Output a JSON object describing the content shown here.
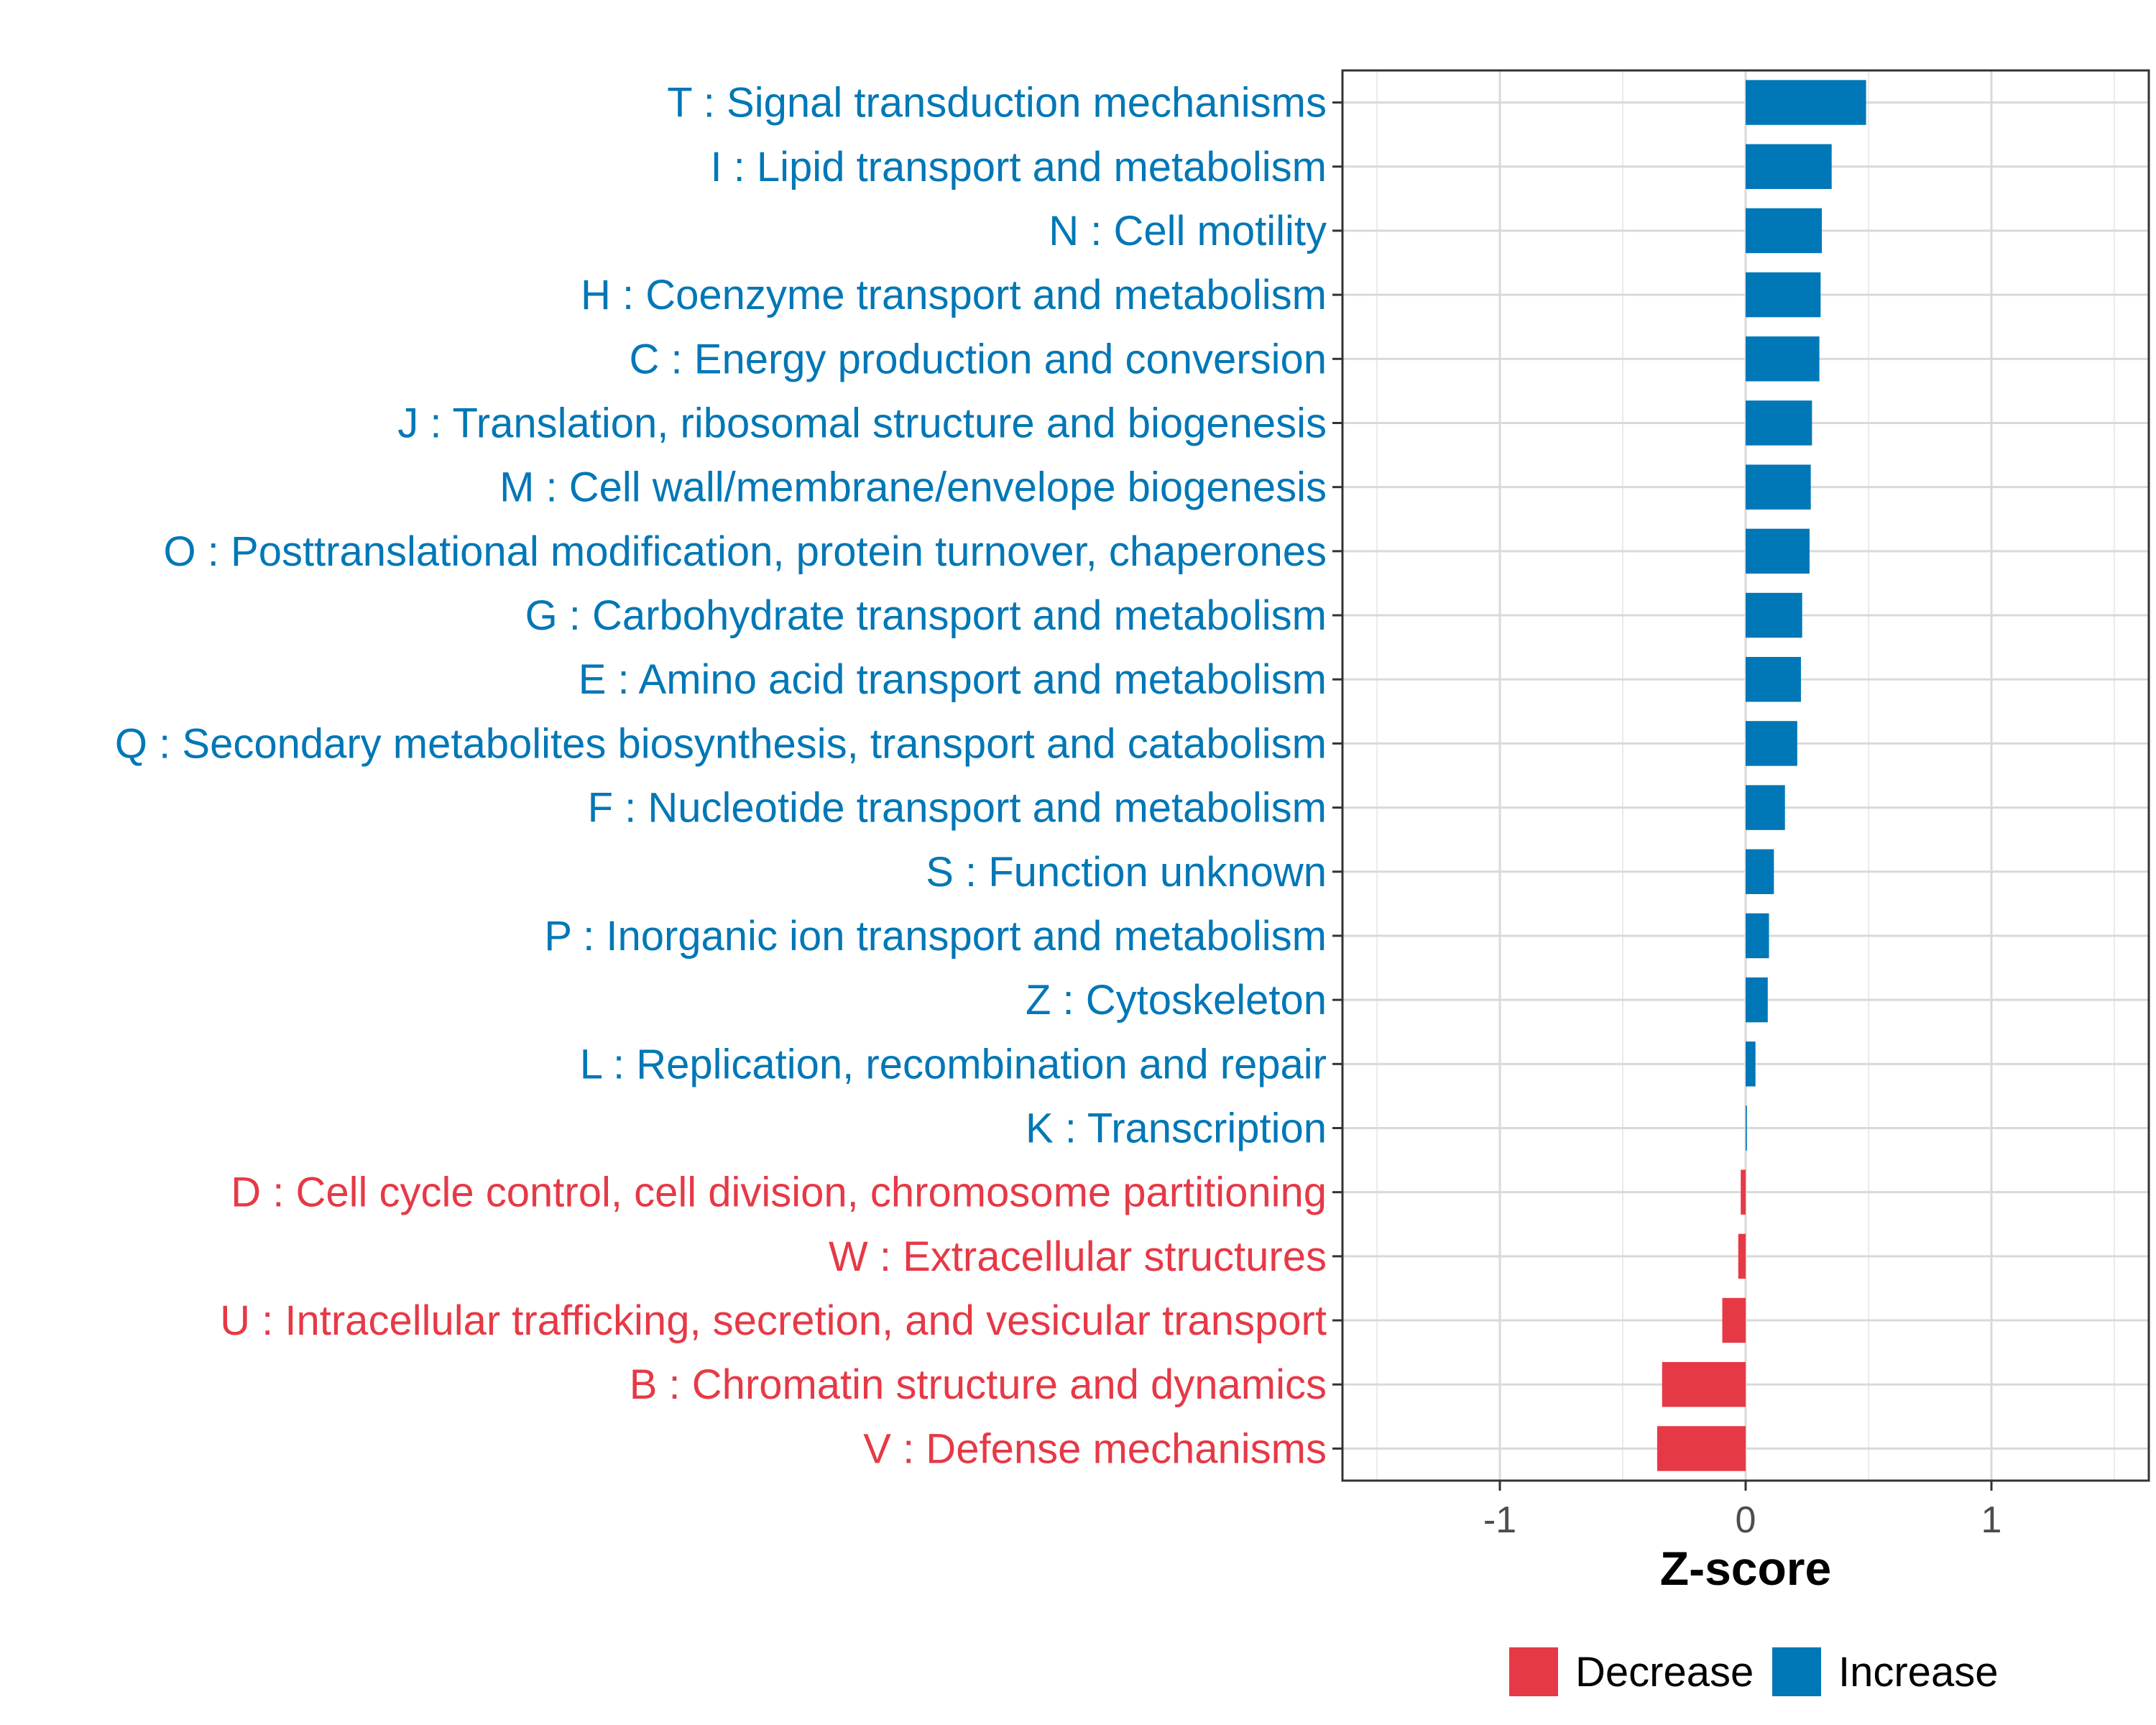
{
  "chart_data": {
    "type": "bar",
    "orientation": "horizontal",
    "xlabel": "Z-score",
    "ylabel": "",
    "xlim": [
      -1.65,
      1.65
    ],
    "x_ticks": [
      {
        "value": -1,
        "label": "-1"
      },
      {
        "value": 0,
        "label": "0"
      },
      {
        "value": 1,
        "label": "1"
      }
    ],
    "grid": true,
    "legend": {
      "position": "bottom-right",
      "items": [
        {
          "key": "Decrease",
          "label": "Decrease",
          "color": "#E63946"
        },
        {
          "key": "Increase",
          "label": "Increase",
          "color": "#0077B6"
        }
      ]
    },
    "categories": [
      "T : Signal transduction mechanisms",
      "I : Lipid transport and metabolism",
      "N : Cell motility",
      "H : Coenzyme transport and metabolism",
      "C : Energy production and conversion",
      "J : Translation, ribosomal structure and biogenesis",
      "M : Cell wall/membrane/envelope biogenesis",
      "O : Posttranslational modification, protein turnover, chaperones",
      "G : Carbohydrate transport and metabolism",
      "E : Amino acid transport and metabolism",
      "Q : Secondary metabolites biosynthesis, transport and catabolism",
      "F : Nucleotide transport and metabolism",
      "S : Function unknown",
      "P : Inorganic ion transport and metabolism",
      "Z : Cytoskeleton",
      "L : Replication, recombination and repair",
      "K : Transcription",
      "D : Cell cycle control, cell division, chromosome partitioning",
      "W : Extracellular structures",
      "U : Intracellular trafficking, secretion, and vesicular transport",
      "B : Chromatin structure and dynamics",
      "V : Defense mechanisms"
    ],
    "values": [
      0.49,
      0.35,
      0.31,
      0.305,
      0.3,
      0.27,
      0.265,
      0.26,
      0.23,
      0.225,
      0.21,
      0.16,
      0.115,
      0.095,
      0.09,
      0.04,
      0.005,
      -0.02,
      -0.03,
      -0.095,
      -0.34,
      -0.36
    ],
    "groups": [
      "Increase",
      "Increase",
      "Increase",
      "Increase",
      "Increase",
      "Increase",
      "Increase",
      "Increase",
      "Increase",
      "Increase",
      "Increase",
      "Increase",
      "Increase",
      "Increase",
      "Increase",
      "Increase",
      "Increase",
      "Decrease",
      "Decrease",
      "Decrease",
      "Decrease",
      "Decrease"
    ]
  }
}
